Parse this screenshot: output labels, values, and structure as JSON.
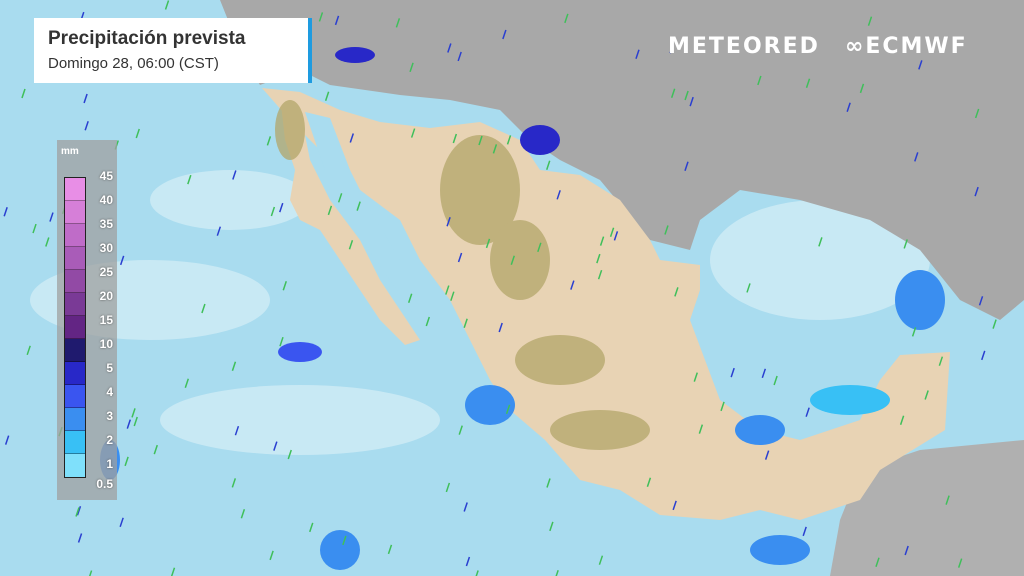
{
  "header": {
    "title": "Precipitación prevista",
    "subtitle": "Domingo 28, 06:00 (CST)"
  },
  "brands": {
    "meteored": "METEORED",
    "ecmwf": "ECMWF",
    "ecmwf_icon": "ecmwf-logo-icon"
  },
  "colors": {
    "ocean": "#a9dcef",
    "land_us": "#a8a8a8",
    "land_mexico": "#e8d3b4",
    "highlands": "#b3a66a",
    "accent": "#1e9be0",
    "wind": "#3fbf5a"
  },
  "legend": {
    "unit": "mm",
    "levels": [
      {
        "label": "45",
        "color": "#e88ee6"
      },
      {
        "label": "40",
        "color": "#d67fd8"
      },
      {
        "label": "35",
        "color": "#bf6cc8"
      },
      {
        "label": "30",
        "color": "#a95cb8"
      },
      {
        "label": "25",
        "color": "#924aa5"
      },
      {
        "label": "20",
        "color": "#7a3a96"
      },
      {
        "label": "15",
        "color": "#632584"
      },
      {
        "label": "10",
        "color": "#1f1a6e"
      },
      {
        "label": "5",
        "color": "#2828c8"
      },
      {
        "label": "4",
        "color": "#3a55f0"
      },
      {
        "label": "3",
        "color": "#3a8ef0"
      },
      {
        "label": "2",
        "color": "#38c0f5"
      },
      {
        "label": "1",
        "color": "#7fe0fb"
      }
    ],
    "bottom_label": "0.5"
  }
}
